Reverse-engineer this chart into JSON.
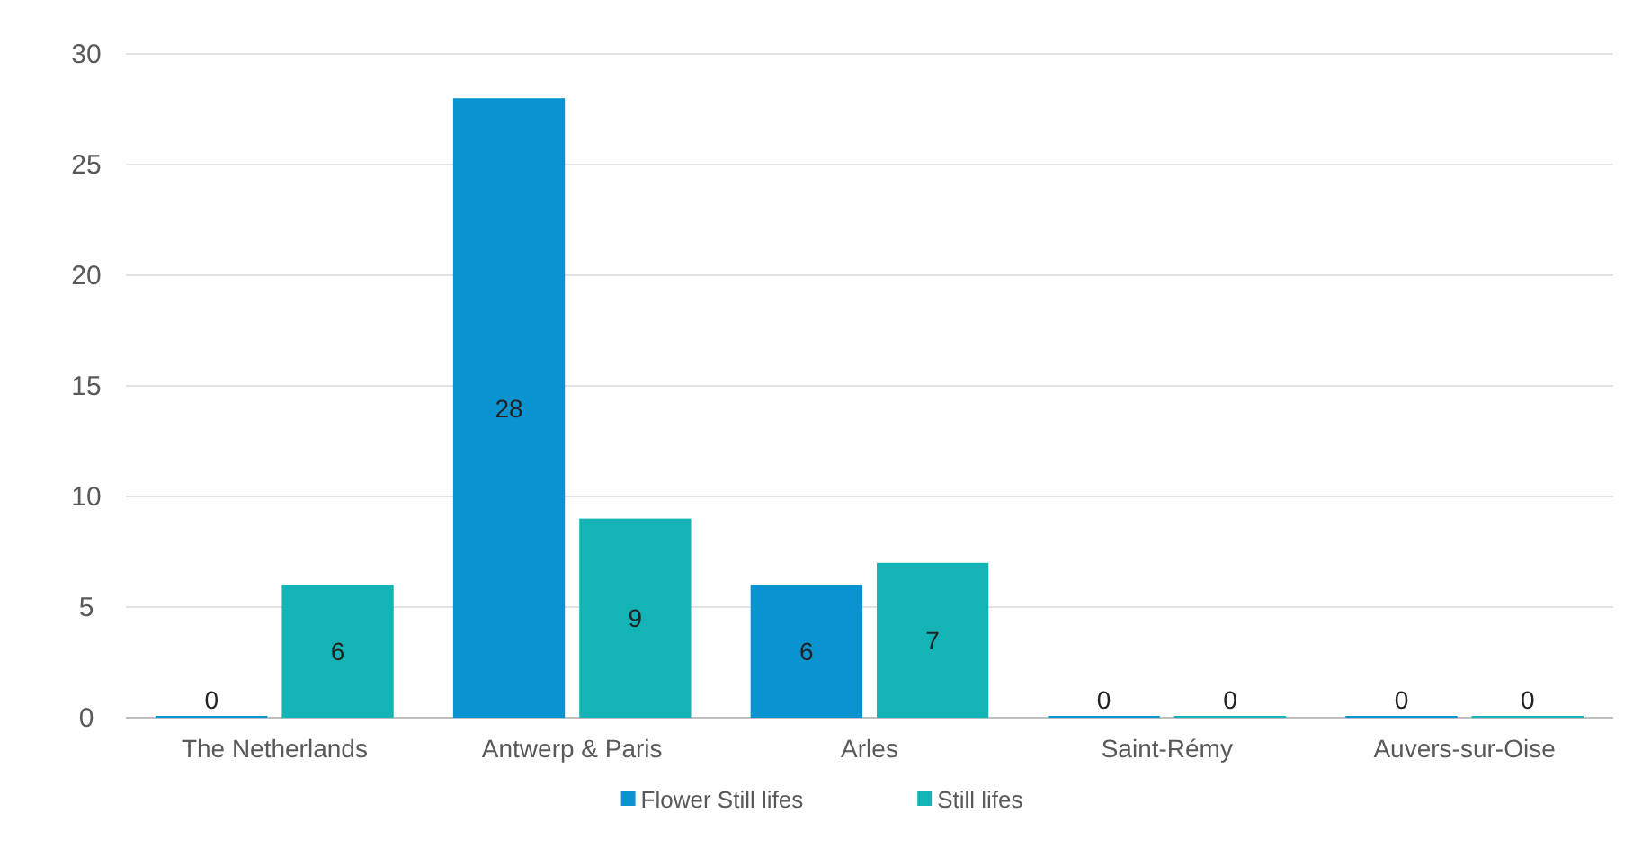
{
  "chart_data": {
    "type": "bar",
    "categories": [
      "The Netherlands",
      "Antwerp & Paris",
      "Arles",
      "Saint-Rémy",
      "Auvers-sur-Oise"
    ],
    "series": [
      {
        "name": "Flower Still lifes",
        "color": "#0a93d1",
        "values": [
          0,
          28,
          6,
          0,
          0
        ]
      },
      {
        "name": "Still lifes",
        "color": "#14b4b6",
        "values": [
          6,
          9,
          7,
          0,
          0
        ]
      }
    ],
    "ylim": [
      0,
      30
    ],
    "yticks": [
      0,
      5,
      10,
      15,
      20,
      25,
      30
    ],
    "grid": "y",
    "legend": "bottom",
    "data_labels": true
  }
}
